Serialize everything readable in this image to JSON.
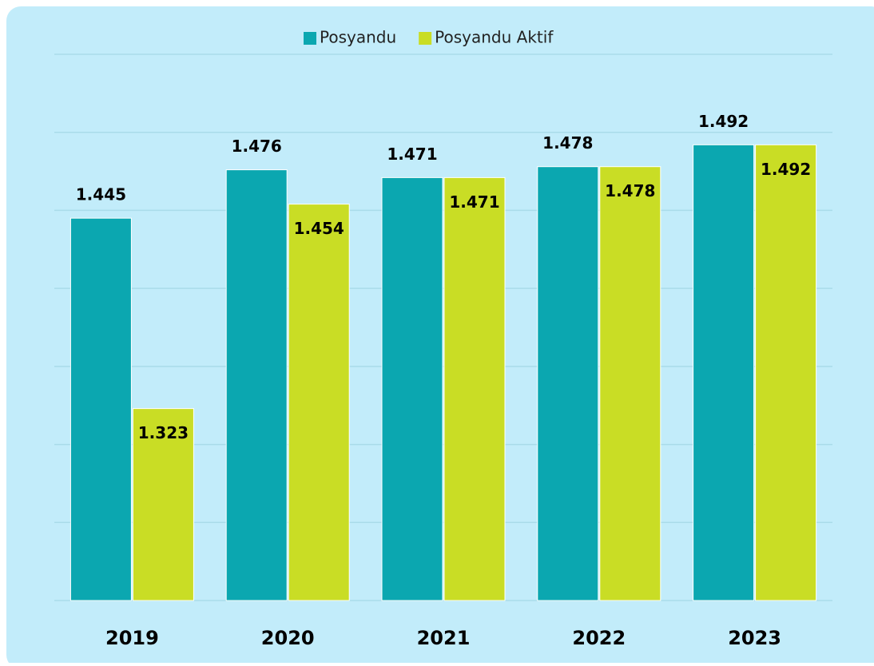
{
  "chart_data": {
    "type": "bar",
    "categories": [
      "2019",
      "2020",
      "2021",
      "2022",
      "2023"
    ],
    "series": [
      {
        "name": "Posyandu",
        "color": "#0ba7b0",
        "values": [
          1445,
          1476,
          1471,
          1478,
          1492
        ],
        "value_labels": [
          "1.445",
          "1.476",
          "1.471",
          "1.478",
          "1.492"
        ]
      },
      {
        "name": "Posyandu Aktif",
        "color": "#c9dd25",
        "values": [
          1323,
          1454,
          1471,
          1478,
          1492
        ],
        "value_labels": [
          "1.323",
          "1.454",
          "1.471",
          "1.478",
          "1.492"
        ]
      }
    ],
    "ylim": [
      1200,
      1550
    ],
    "yticks": [
      1200,
      1250,
      1300,
      1350,
      1400,
      1450,
      1500,
      1550
    ],
    "grid": true,
    "legend": "top"
  }
}
